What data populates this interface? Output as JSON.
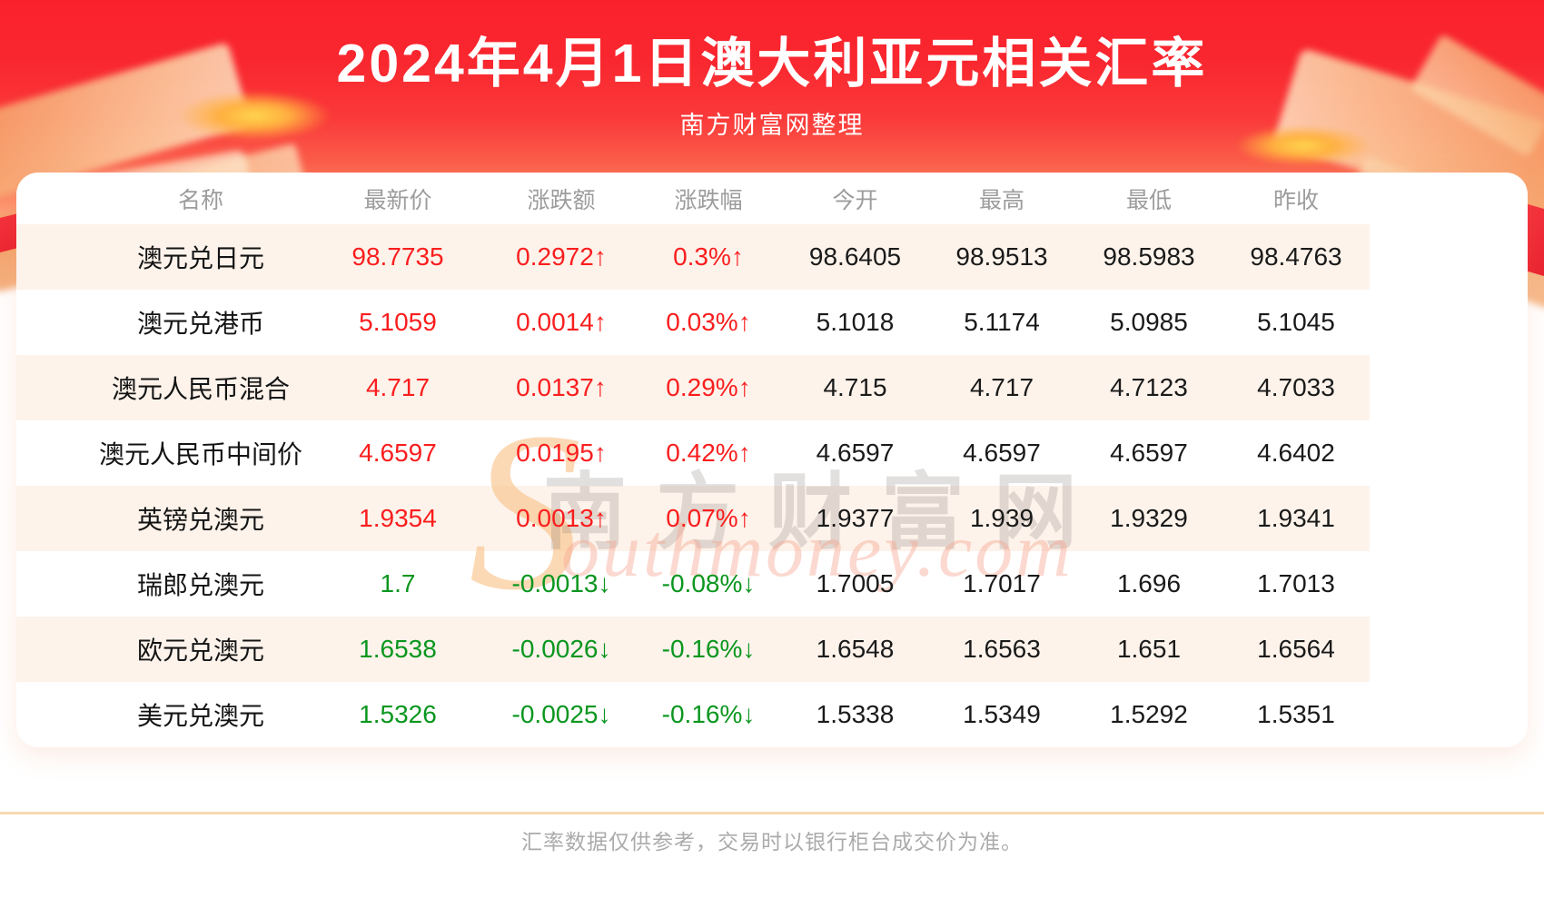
{
  "header": {
    "title": "2024年4月1日澳大利亚元相关汇率",
    "subtitle": "南方财富网整理"
  },
  "watermark": {
    "swash": "S",
    "cjk": "南方财富网",
    "latin": "outhmoney.com"
  },
  "table": {
    "columns": [
      "名称",
      "最新价",
      "涨跌额",
      "涨跌幅",
      "今开",
      "最高",
      "最低",
      "昨收"
    ],
    "rows": [
      {
        "name": "澳元兑日元",
        "latest": "98.7735",
        "change": "0.2972↑",
        "change_pct": "0.3%↑",
        "open": "98.6405",
        "high": "98.9513",
        "low": "98.5983",
        "prev_close": "98.4763",
        "direction": "up"
      },
      {
        "name": "澳元兑港币",
        "latest": "5.1059",
        "change": "0.0014↑",
        "change_pct": "0.03%↑",
        "open": "5.1018",
        "high": "5.1174",
        "low": "5.0985",
        "prev_close": "5.1045",
        "direction": "up"
      },
      {
        "name": "澳元人民币混合",
        "latest": "4.717",
        "change": "0.0137↑",
        "change_pct": "0.29%↑",
        "open": "4.715",
        "high": "4.717",
        "low": "4.7123",
        "prev_close": "4.7033",
        "direction": "up"
      },
      {
        "name": "澳元人民币中间价",
        "latest": "4.6597",
        "change": "0.0195↑",
        "change_pct": "0.42%↑",
        "open": "4.6597",
        "high": "4.6597",
        "low": "4.6597",
        "prev_close": "4.6402",
        "direction": "up"
      },
      {
        "name": "英镑兑澳元",
        "latest": "1.9354",
        "change": "0.0013↑",
        "change_pct": "0.07%↑",
        "open": "1.9377",
        "high": "1.939",
        "low": "1.9329",
        "prev_close": "1.9341",
        "direction": "up"
      },
      {
        "name": "瑞郎兑澳元",
        "latest": "1.7",
        "change": "-0.0013↓",
        "change_pct": "-0.08%↓",
        "open": "1.7005",
        "high": "1.7017",
        "low": "1.696",
        "prev_close": "1.7013",
        "direction": "down"
      },
      {
        "name": "欧元兑澳元",
        "latest": "1.6538",
        "change": "-0.0026↓",
        "change_pct": "-0.16%↓",
        "open": "1.6548",
        "high": "1.6563",
        "low": "1.651",
        "prev_close": "1.6564",
        "direction": "down"
      },
      {
        "name": "美元兑澳元",
        "latest": "1.5326",
        "change": "-0.0025↓",
        "change_pct": "-0.16%↓",
        "open": "1.5338",
        "high": "1.5349",
        "low": "1.5292",
        "prev_close": "1.5351",
        "direction": "down"
      }
    ]
  },
  "footer": {
    "disclaimer": "汇率数据仅供参考，交易时以银行柜台成交价为准。"
  },
  "colors": {
    "up": "#fa1e1e",
    "down": "#0a961e",
    "banner_red": "#fa212d",
    "row_alt": "#fdf3eb",
    "header_text": "#9c9c9c"
  },
  "chart_data": {
    "type": "table",
    "title": "2024年4月1日澳大利亚元相关汇率",
    "source_note": "南方财富网整理",
    "columns": [
      "名称",
      "最新价",
      "涨跌额",
      "涨跌幅",
      "今开",
      "最高",
      "最低",
      "昨收"
    ],
    "rows": [
      [
        "澳元兑日元",
        98.7735,
        0.2972,
        "0.3%",
        98.6405,
        98.9513,
        98.5983,
        98.4763
      ],
      [
        "澳元兑港币",
        5.1059,
        0.0014,
        "0.03%",
        5.1018,
        5.1174,
        5.0985,
        5.1045
      ],
      [
        "澳元人民币混合",
        4.717,
        0.0137,
        "0.29%",
        4.715,
        4.717,
        4.7123,
        4.7033
      ],
      [
        "澳元人民币中间价",
        4.6597,
        0.0195,
        "0.42%",
        4.6597,
        4.6597,
        4.6597,
        4.6402
      ],
      [
        "英镑兑澳元",
        1.9354,
        0.0013,
        "0.07%",
        1.9377,
        1.939,
        1.9329,
        1.9341
      ],
      [
        "瑞郎兑澳元",
        1.7,
        -0.0013,
        "-0.08%",
        1.7005,
        1.7017,
        1.696,
        1.7013
      ],
      [
        "欧元兑澳元",
        1.6538,
        -0.0026,
        "-0.16%",
        1.6548,
        1.6563,
        1.651,
        1.6564
      ],
      [
        "美元兑澳元",
        1.5326,
        -0.0025,
        "-0.16%",
        1.5338,
        1.5349,
        1.5292,
        1.5351
      ]
    ]
  }
}
